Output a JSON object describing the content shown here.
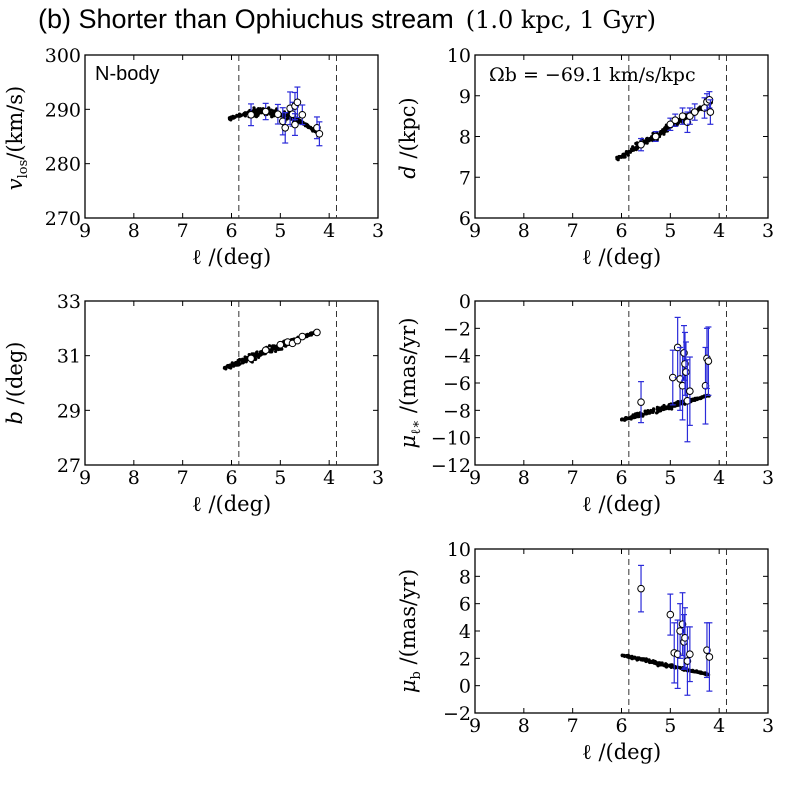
{
  "figure": {
    "title_prefix": "(b) Shorter than Ophiuchus stream",
    "title_params": "(1.0 kpc,  1 Gyr)"
  },
  "colors": {
    "error_bar": "#2b2bd9",
    "sim_points": "#000000",
    "obs_points": "#ffffff"
  },
  "chart_data": [
    {
      "id": "vlos",
      "type": "scatter",
      "ylabel_main": "v",
      "ylabel_sub": "los",
      "ylabel_rest": "/(km/s)",
      "xlabel": "ℓ /(deg)",
      "xlim": [
        9,
        3
      ],
      "ylim": [
        270,
        300
      ],
      "xticks": [
        9,
        8,
        7,
        6,
        5,
        4,
        3
      ],
      "yticks": [
        270,
        280,
        290,
        300
      ],
      "vlines": [
        5.85,
        3.85
      ],
      "annotation": "N-body",
      "annotation_style": "sans",
      "sim_band": {
        "x_start": 6.05,
        "x_end": 4.25,
        "y_start": 288.2,
        "y_end": 285.8,
        "y_peak": 289.4,
        "spread": 1.2,
        "n": 240
      },
      "observations": [
        {
          "l": 5.6,
          "v": 289.0,
          "err": 2.0
        },
        {
          "l": 5.3,
          "v": 289.6,
          "err": 1.5
        },
        {
          "l": 5.05,
          "v": 289.1,
          "err": 1.8
        },
        {
          "l": 4.95,
          "v": 287.8,
          "err": 2.5
        },
        {
          "l": 4.9,
          "v": 286.6,
          "err": 2.8
        },
        {
          "l": 4.8,
          "v": 290.2,
          "err": 3.0
        },
        {
          "l": 4.75,
          "v": 289.1,
          "err": 2.2
        },
        {
          "l": 4.7,
          "v": 290.6,
          "err": 2.5
        },
        {
          "l": 4.7,
          "v": 287.2,
          "err": 2.0
        },
        {
          "l": 4.65,
          "v": 291.3,
          "err": 2.8
        },
        {
          "l": 4.55,
          "v": 289.0,
          "err": 1.8
        },
        {
          "l": 4.25,
          "v": 286.6,
          "err": 2.0
        },
        {
          "l": 4.2,
          "v": 285.5,
          "err": 2.2
        }
      ]
    },
    {
      "id": "dist",
      "type": "scatter",
      "ylabel_main": "d",
      "ylabel_sub": "",
      "ylabel_rest": " /(kpc)",
      "xlabel": "ℓ /(deg)",
      "xlim": [
        9,
        3
      ],
      "ylim": [
        6,
        10
      ],
      "xticks": [
        9,
        8,
        7,
        6,
        5,
        4,
        3
      ],
      "yticks": [
        6,
        7,
        8,
        9,
        10
      ],
      "vlines": [
        5.85,
        3.85
      ],
      "annotation": "Ωb = −69.1 km/s/kpc",
      "annotation_style": "serif",
      "sim_band": {
        "x_start": 6.1,
        "x_end": 4.15,
        "y_start": 7.45,
        "y_end": 8.85,
        "y_peak": null,
        "spread": 0.18,
        "n": 240
      },
      "observations": [
        {
          "l": 5.6,
          "v": 7.8,
          "err": 0.15
        },
        {
          "l": 5.3,
          "v": 8.0,
          "err": 0.12
        },
        {
          "l": 5.0,
          "v": 8.3,
          "err": 0.15
        },
        {
          "l": 4.9,
          "v": 8.4,
          "err": 0.15
        },
        {
          "l": 4.75,
          "v": 8.5,
          "err": 0.2
        },
        {
          "l": 4.65,
          "v": 8.35,
          "err": 0.25
        },
        {
          "l": 4.6,
          "v": 8.5,
          "err": 0.2
        },
        {
          "l": 4.5,
          "v": 8.6,
          "err": 0.2
        },
        {
          "l": 4.3,
          "v": 8.7,
          "err": 0.25
        },
        {
          "l": 4.25,
          "v": 8.85,
          "err": 0.2
        },
        {
          "l": 4.2,
          "v": 8.9,
          "err": 0.2
        },
        {
          "l": 4.18,
          "v": 8.6,
          "err": 0.3
        }
      ]
    },
    {
      "id": "b",
      "type": "scatter",
      "ylabel_main": "b",
      "ylabel_sub": "",
      "ylabel_rest": " /(deg)",
      "xlabel": "ℓ /(deg)",
      "xlim": [
        9,
        3
      ],
      "ylim": [
        27,
        33
      ],
      "xticks": [
        9,
        8,
        7,
        6,
        5,
        4,
        3
      ],
      "yticks": [
        27,
        29,
        31,
        33
      ],
      "vlines": [
        5.85,
        3.85
      ],
      "annotation": "",
      "annotation_style": "none",
      "sim_band": {
        "x_start": 6.15,
        "x_end": 4.3,
        "y_start": 30.55,
        "y_end": 31.85,
        "y_peak": null,
        "spread": 0.25,
        "n": 260
      },
      "observations": [
        {
          "l": 5.6,
          "v": 30.9,
          "err": 0
        },
        {
          "l": 5.3,
          "v": 31.2,
          "err": 0
        },
        {
          "l": 5.0,
          "v": 31.4,
          "err": 0
        },
        {
          "l": 4.85,
          "v": 31.5,
          "err": 0
        },
        {
          "l": 4.75,
          "v": 31.45,
          "err": 0
        },
        {
          "l": 4.65,
          "v": 31.55,
          "err": 0
        },
        {
          "l": 4.55,
          "v": 31.7,
          "err": 0
        },
        {
          "l": 4.25,
          "v": 31.85,
          "err": 0
        }
      ]
    },
    {
      "id": "mul",
      "type": "scatter",
      "ylabel_main": "μ",
      "ylabel_sub": "ℓ∗",
      "ylabel_rest": " /(mas/yr)",
      "xlabel": "ℓ /(deg)",
      "xlim": [
        9,
        3
      ],
      "ylim": [
        -12,
        0
      ],
      "xticks": [
        9,
        8,
        7,
        6,
        5,
        4,
        3
      ],
      "yticks": [
        -12,
        -10,
        -8,
        -6,
        -4,
        -2,
        0
      ],
      "vlines": [
        5.85,
        3.85
      ],
      "annotation": "",
      "annotation_style": "none",
      "sim_band": {
        "x_start": 6.0,
        "x_end": 4.2,
        "y_start": -8.7,
        "y_end": -6.9,
        "y_peak": null,
        "spread": 0.35,
        "n": 240
      },
      "observations": [
        {
          "l": 5.6,
          "v": -7.4,
          "err": 1.5
        },
        {
          "l": 4.95,
          "v": -5.6,
          "err": 2.0
        },
        {
          "l": 4.85,
          "v": -3.4,
          "err": 2.2
        },
        {
          "l": 4.8,
          "v": -5.7,
          "err": 2.3
        },
        {
          "l": 4.75,
          "v": -6.2,
          "err": 2.5
        },
        {
          "l": 4.72,
          "v": -3.8,
          "err": 2.0
        },
        {
          "l": 4.7,
          "v": -4.6,
          "err": 2.3
        },
        {
          "l": 4.68,
          "v": -5.2,
          "err": 2.2
        },
        {
          "l": 4.65,
          "v": -7.3,
          "err": 3.0
        },
        {
          "l": 4.6,
          "v": -6.6,
          "err": 2.5
        },
        {
          "l": 4.28,
          "v": -6.2,
          "err": 2.8
        },
        {
          "l": 4.25,
          "v": -4.2,
          "err": 2.2
        },
        {
          "l": 4.22,
          "v": -4.4,
          "err": 2.5
        }
      ]
    },
    {
      "id": "mub",
      "type": "scatter",
      "ylabel_main": "μ",
      "ylabel_sub": "b",
      "ylabel_rest": " /(mas/yr)",
      "xlabel": "ℓ /(deg)",
      "xlim": [
        9,
        3
      ],
      "ylim": [
        -2,
        10
      ],
      "xticks": [
        9,
        8,
        7,
        6,
        5,
        4,
        3
      ],
      "yticks": [
        -2,
        0,
        2,
        4,
        6,
        8,
        10
      ],
      "vlines": [
        5.85,
        3.85
      ],
      "annotation": "",
      "annotation_style": "none",
      "sim_band": {
        "x_start": 6.0,
        "x_end": 4.2,
        "y_start": 2.25,
        "y_end": 0.8,
        "y_peak": null,
        "spread": 0.25,
        "n": 220
      },
      "observations": [
        {
          "l": 5.6,
          "v": 7.1,
          "err": 1.7
        },
        {
          "l": 5.0,
          "v": 5.2,
          "err": 1.5
        },
        {
          "l": 4.92,
          "v": 2.4,
          "err": 2.2
        },
        {
          "l": 4.85,
          "v": 2.3,
          "err": 2.5
        },
        {
          "l": 4.8,
          "v": 4.0,
          "err": 2.0
        },
        {
          "l": 4.75,
          "v": 4.5,
          "err": 2.3
        },
        {
          "l": 4.72,
          "v": 3.2,
          "err": 2.0
        },
        {
          "l": 4.7,
          "v": 3.5,
          "err": 2.2
        },
        {
          "l": 4.65,
          "v": 1.8,
          "err": 2.5
        },
        {
          "l": 4.6,
          "v": 2.3,
          "err": 2.0
        },
        {
          "l": 4.25,
          "v": 2.6,
          "err": 2.0
        },
        {
          "l": 4.2,
          "v": 2.1,
          "err": 2.5
        }
      ]
    }
  ]
}
